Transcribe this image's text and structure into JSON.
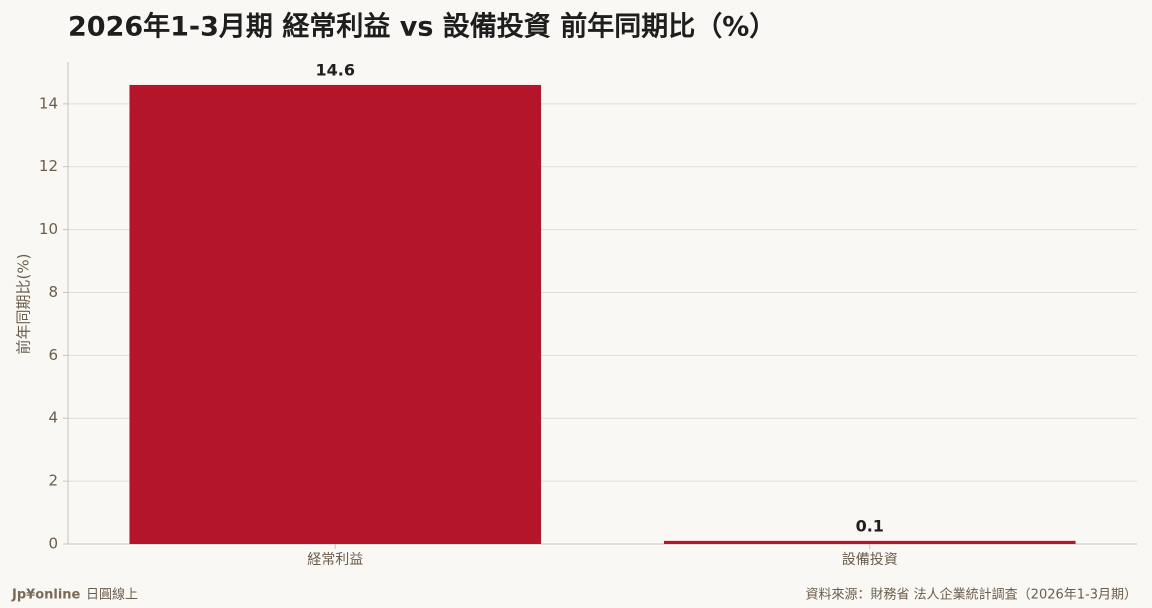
{
  "chart_data": {
    "type": "bar",
    "title": "2026年1-3月期 経常利益 vs 設備投資 前年同期比（%）",
    "y_label": "前年同期比(%)",
    "categories": [
      "経常利益",
      "設備投資"
    ],
    "values": [
      14.6,
      0.1
    ],
    "color": "#b5152b",
    "ylim": [
      0,
      15.33
    ],
    "yticks": [
      0,
      2,
      4,
      6,
      8,
      10,
      12,
      14
    ],
    "grid": true,
    "brand": "Jp¥online",
    "brand_sub": "日圓線上",
    "source": "資料來源：財務省 法人企業統計調査（2026年1-3月期）"
  }
}
